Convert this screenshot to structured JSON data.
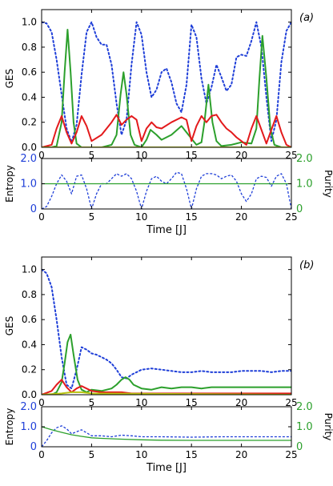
{
  "chart_data": [
    {
      "type": "line",
      "panel_label": "(a)",
      "xlabel": "Time [J]",
      "ylabel": "GES",
      "xlim": [
        0,
        25
      ],
      "ylim": [
        0,
        1.1
      ],
      "x_ticks": [
        0,
        5,
        10,
        15,
        20,
        25
      ],
      "y_ticks": [
        0.0,
        0.2,
        0.4,
        0.6,
        0.8,
        1.0
      ],
      "grid": false,
      "series": [
        {
          "style": "dotted",
          "color": "#1f3fd8",
          "x": [
            0,
            0.5,
            1,
            1.5,
            2,
            2.5,
            3,
            3.5,
            4,
            4.5,
            5,
            5.5,
            6,
            6.5,
            7,
            7.5,
            8,
            8.5,
            9,
            9.5,
            10,
            10.5,
            11,
            11.5,
            12,
            12.5,
            13,
            13.5,
            14,
            14.5,
            15,
            15.5,
            16,
            16.5,
            17,
            17.5,
            18,
            18.5,
            19,
            19.5,
            20,
            20.5,
            21,
            21.5,
            22,
            22.5,
            23,
            23.5,
            24,
            24.5,
            25
          ],
          "y": [
            1.0,
            0.99,
            0.92,
            0.7,
            0.42,
            0.15,
            0.04,
            0.18,
            0.58,
            0.92,
            1.0,
            0.88,
            0.82,
            0.82,
            0.66,
            0.35,
            0.1,
            0.22,
            0.66,
            1.0,
            0.9,
            0.6,
            0.4,
            0.46,
            0.6,
            0.63,
            0.52,
            0.35,
            0.28,
            0.5,
            0.98,
            0.88,
            0.55,
            0.35,
            0.48,
            0.66,
            0.56,
            0.45,
            0.5,
            0.72,
            0.74,
            0.73,
            0.85,
            1.0,
            0.8,
            0.4,
            0.05,
            0.22,
            0.68,
            0.93,
            1.0
          ]
        },
        {
          "style": "solid",
          "color": "#2ca02c",
          "x": [
            0,
            1,
            1.5,
            2,
            2.3,
            2.6,
            2.9,
            3.2,
            3.5,
            4,
            5,
            6,
            7,
            7.5,
            7.9,
            8.2,
            8.5,
            8.9,
            9.3,
            10,
            10.5,
            10.9,
            11.5,
            12,
            13,
            14,
            15,
            15.5,
            16,
            16.3,
            16.7,
            17.1,
            17.5,
            18,
            19,
            20,
            21,
            21.5,
            21.8,
            22.1,
            22.5,
            22.9,
            23.3,
            24,
            25
          ],
          "y": [
            0,
            0,
            0.01,
            0.2,
            0.6,
            0.94,
            0.6,
            0.2,
            0.03,
            0,
            0,
            0,
            0.02,
            0.1,
            0.42,
            0.6,
            0.42,
            0.1,
            0.02,
            0,
            0.06,
            0.14,
            0.1,
            0.06,
            0.1,
            0.17,
            0.07,
            0.02,
            0.04,
            0.2,
            0.5,
            0.2,
            0.05,
            0.01,
            0.02,
            0.04,
            0.03,
            0.15,
            0.55,
            0.89,
            0.55,
            0.15,
            0.02,
            0,
            0
          ]
        },
        {
          "style": "solid",
          "color": "#e31a1c",
          "x": [
            0,
            1,
            1.5,
            2,
            2.5,
            3,
            3.5,
            4,
            4.5,
            5,
            6,
            7,
            7.5,
            8,
            8.5,
            9,
            9.5,
            10,
            10.5,
            11,
            11.5,
            12,
            13,
            14,
            14.5,
            15,
            15.5,
            16,
            16.5,
            17,
            17.5,
            18,
            18.5,
            19,
            19.5,
            20,
            20.5,
            21,
            21.5,
            22,
            22.5,
            23,
            23.5,
            24,
            24.5,
            25
          ],
          "y": [
            0,
            0.02,
            0.15,
            0.25,
            0.12,
            0.03,
            0.12,
            0.25,
            0.17,
            0.05,
            0.1,
            0.2,
            0.26,
            0.18,
            0.22,
            0.25,
            0.22,
            0.05,
            0.15,
            0.2,
            0.16,
            0.15,
            0.2,
            0.24,
            0.22,
            0.05,
            0.17,
            0.25,
            0.2,
            0.25,
            0.26,
            0.2,
            0.15,
            0.12,
            0.08,
            0.05,
            0.02,
            0.15,
            0.25,
            0.14,
            0.03,
            0.14,
            0.25,
            0.12,
            0.02,
            0
          ]
        },
        {
          "style": "solid",
          "color": "#b8c210",
          "x": [
            0,
            25
          ],
          "y": [
            0,
            0
          ]
        }
      ]
    },
    {
      "type": "line",
      "xlabel": "Time [J]",
      "ylabel": "Entropy",
      "ylabel_right": "Purity",
      "xlim": [
        0,
        25
      ],
      "ylim": [
        0,
        2.0
      ],
      "ylim_right": [
        0,
        2.0
      ],
      "y_ticks": [
        0,
        1.0,
        2.0
      ],
      "y_ticks_right": [
        0,
        1.0,
        2.0
      ],
      "series": [
        {
          "style": "dashed",
          "color": "#1f3fd8",
          "x": [
            0,
            0.5,
            1,
            1.5,
            2,
            2.5,
            3,
            3.5,
            4,
            4.5,
            5,
            5.5,
            6,
            6.5,
            7,
            7.5,
            8,
            8.5,
            9,
            9.5,
            10,
            10.5,
            11,
            11.5,
            12,
            12.5,
            13,
            13.5,
            14,
            14.5,
            15,
            15.5,
            16,
            16.5,
            17,
            17.5,
            18,
            18.5,
            19,
            19.5,
            20,
            20.5,
            21,
            21.5,
            22,
            22.5,
            23,
            23.5,
            24,
            24.5,
            25
          ],
          "y": [
            0,
            0.1,
            0.5,
            1.0,
            1.35,
            1.1,
            0.6,
            1.3,
            1.35,
            0.8,
            0,
            0.6,
            1.0,
            1.0,
            1.2,
            1.4,
            1.3,
            1.4,
            1.2,
            0.7,
            0,
            0.7,
            1.2,
            1.3,
            1.1,
            1.0,
            1.2,
            1.45,
            1.4,
            0.8,
            0,
            0.8,
            1.3,
            1.4,
            1.4,
            1.35,
            1.2,
            1.3,
            1.35,
            1.1,
            0.6,
            0.3,
            0.6,
            1.2,
            1.3,
            1.25,
            0.9,
            1.3,
            1.4,
            1.0,
            0
          ]
        },
        {
          "style": "solid",
          "color": "#2ca02c",
          "axis": "right",
          "x": [
            0,
            25
          ],
          "y": [
            1.0,
            1.0
          ]
        }
      ]
    },
    {
      "type": "line",
      "panel_label": "(b)",
      "xlabel": "Time [J]",
      "ylabel": "GES",
      "xlim": [
        0,
        25
      ],
      "ylim": [
        0,
        1.1
      ],
      "x_ticks": [
        0,
        5,
        10,
        15,
        20,
        25
      ],
      "y_ticks": [
        0.0,
        0.2,
        0.4,
        0.6,
        0.8,
        1.0
      ],
      "series": [
        {
          "style": "dotted",
          "color": "#1f3fd8",
          "x": [
            0,
            0.5,
            1,
            1.5,
            2,
            2.5,
            3,
            3.5,
            4,
            4.5,
            5,
            5.5,
            6,
            6.5,
            7,
            7.5,
            8,
            8.5,
            9,
            9.5,
            10,
            11,
            12,
            13,
            14,
            15,
            16,
            17,
            18,
            19,
            20,
            21,
            22,
            23,
            24,
            25
          ],
          "y": [
            1.0,
            0.97,
            0.86,
            0.6,
            0.3,
            0.08,
            0.05,
            0.2,
            0.38,
            0.36,
            0.33,
            0.32,
            0.3,
            0.28,
            0.25,
            0.2,
            0.14,
            0.13,
            0.16,
            0.18,
            0.2,
            0.21,
            0.2,
            0.19,
            0.18,
            0.18,
            0.19,
            0.18,
            0.18,
            0.18,
            0.19,
            0.19,
            0.19,
            0.18,
            0.19,
            0.19
          ]
        },
        {
          "style": "solid",
          "color": "#2ca02c",
          "x": [
            0,
            1,
            1.5,
            2,
            2.3,
            2.6,
            2.9,
            3.2,
            3.6,
            4,
            4.5,
            5,
            6,
            7,
            7.5,
            8,
            8.4,
            8.8,
            9.2,
            10,
            11,
            12,
            13,
            14,
            15,
            16,
            17,
            18,
            19,
            20,
            21,
            22,
            23,
            24,
            25
          ],
          "y": [
            0,
            0,
            0.02,
            0.1,
            0.25,
            0.42,
            0.48,
            0.32,
            0.12,
            0.04,
            0.02,
            0.04,
            0.03,
            0.05,
            0.08,
            0.12,
            0.14,
            0.12,
            0.08,
            0.05,
            0.04,
            0.06,
            0.05,
            0.06,
            0.06,
            0.05,
            0.06,
            0.06,
            0.06,
            0.06,
            0.06,
            0.06,
            0.06,
            0.06,
            0.06
          ]
        },
        {
          "style": "solid",
          "color": "#e31a1c",
          "x": [
            0,
            1,
            1.5,
            2,
            2.5,
            3,
            3.5,
            4,
            5,
            6,
            7,
            8,
            9,
            10,
            12,
            15,
            20,
            25
          ],
          "y": [
            0,
            0.03,
            0.08,
            0.12,
            0.06,
            0.02,
            0.05,
            0.07,
            0.03,
            0.02,
            0.02,
            0.02,
            0.01,
            0.01,
            0.01,
            0.01,
            0.01,
            0.01
          ]
        },
        {
          "style": "solid",
          "color": "#b8c210",
          "x": [
            0,
            2,
            3,
            4,
            5,
            25
          ],
          "y": [
            0,
            0.01,
            0.02,
            0.02,
            0.01,
            0
          ]
        }
      ]
    },
    {
      "type": "line",
      "xlabel": "Time [J]",
      "ylabel": "Entropy",
      "ylabel_right": "Purity",
      "xlim": [
        0,
        25
      ],
      "ylim": [
        0,
        2.0
      ],
      "ylim_right": [
        0,
        2.0
      ],
      "x_ticks": [
        0,
        5,
        10,
        15,
        20,
        25
      ],
      "y_ticks": [
        0,
        1.0,
        2.0
      ],
      "y_ticks_right": [
        0,
        1.0,
        2.0
      ],
      "series": [
        {
          "style": "dashed",
          "color": "#1f3fd8",
          "x": [
            0,
            0.5,
            1,
            1.5,
            2,
            2.5,
            3,
            3.5,
            4,
            4.5,
            5,
            6,
            7,
            8,
            9,
            10,
            12,
            15,
            18,
            20,
            22,
            25
          ],
          "y": [
            0,
            0.3,
            0.7,
            0.95,
            1.05,
            0.9,
            0.65,
            0.75,
            0.85,
            0.7,
            0.55,
            0.55,
            0.5,
            0.58,
            0.55,
            0.5,
            0.5,
            0.48,
            0.5,
            0.5,
            0.5,
            0.5
          ]
        },
        {
          "style": "solid",
          "color": "#2ca02c",
          "axis": "right",
          "x": [
            0,
            1,
            2,
            3,
            4,
            5,
            6,
            8,
            10,
            12,
            15,
            20,
            25
          ],
          "y": [
            1.0,
            0.85,
            0.72,
            0.6,
            0.52,
            0.45,
            0.42,
            0.38,
            0.35,
            0.33,
            0.32,
            0.32,
            0.32
          ]
        }
      ]
    }
  ]
}
